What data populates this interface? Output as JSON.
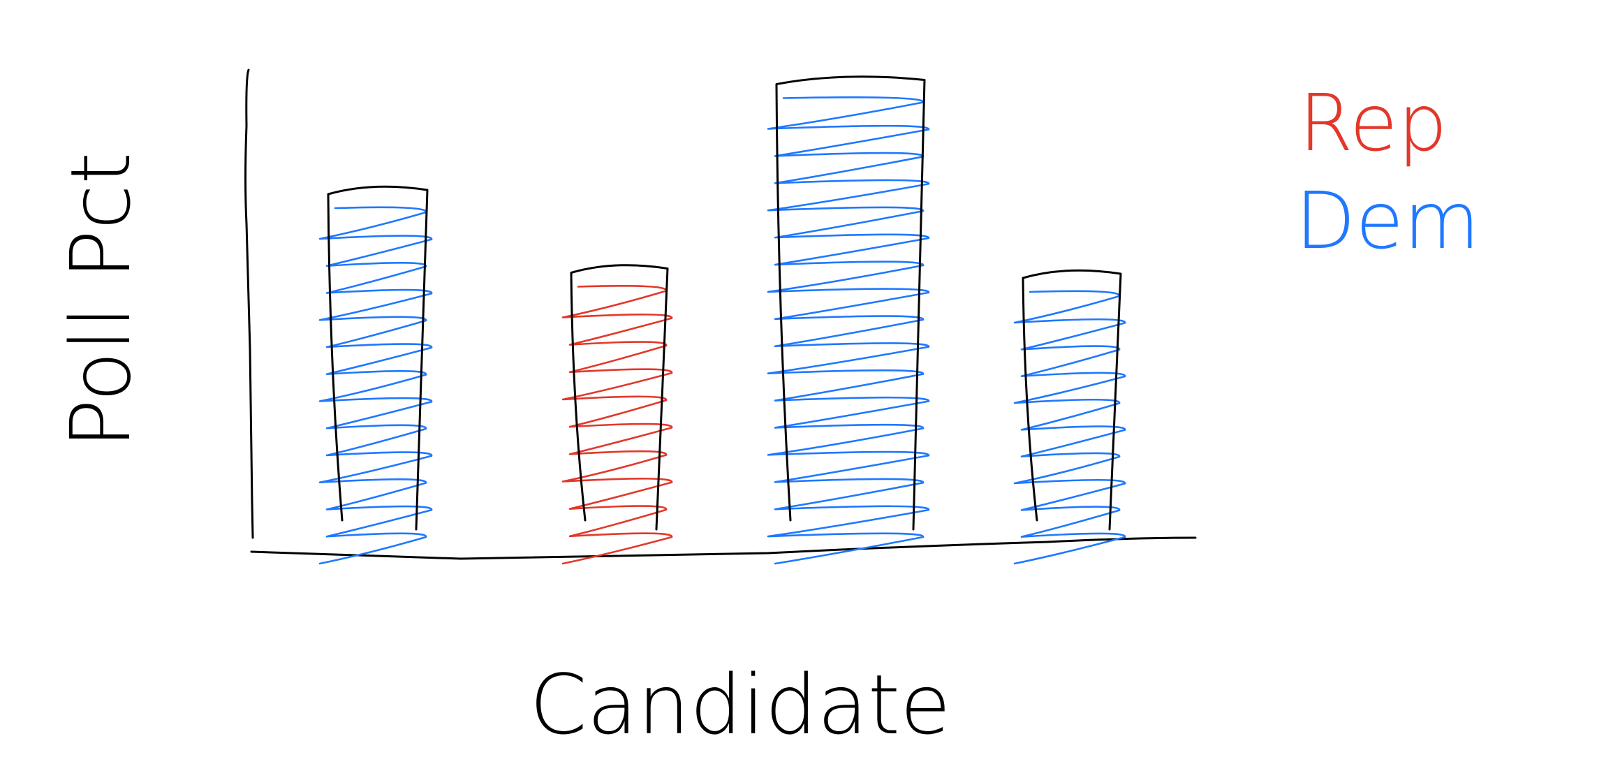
{
  "chart_data": {
    "type": "bar",
    "title": "",
    "xlabel": "Candidate",
    "ylabel": "Poll Pct",
    "categories": [
      "",
      "",
      "",
      ""
    ],
    "series": [
      {
        "values": [
          68,
          53,
          89,
          52
        ],
        "party": [
          "Dem",
          "Rep",
          "Dem",
          "Dem"
        ]
      }
    ],
    "ylim": [
      0,
      100
    ],
    "grid": false,
    "legend": {
      "placement": "top-right",
      "entries": [
        {
          "label": "Rep",
          "color": "#e2382b"
        },
        {
          "label": "Dem",
          "color": "#1f78ff"
        }
      ]
    },
    "colors": {
      "Rep": "#e2382b",
      "Dem": "#1f78ff",
      "axis": "#000000"
    }
  }
}
